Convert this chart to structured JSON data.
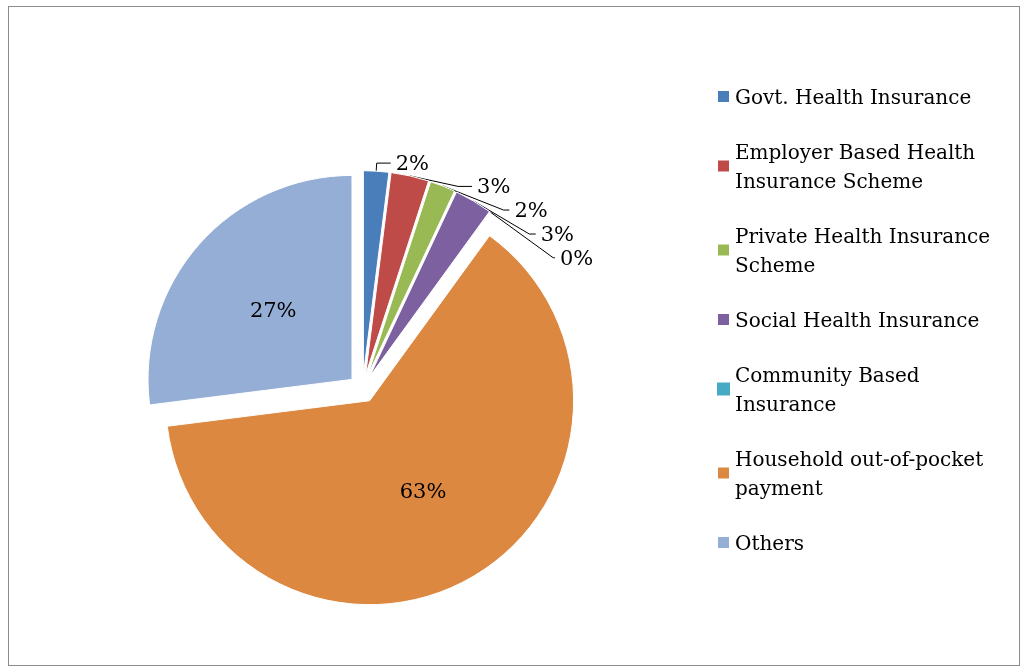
{
  "chart_data": {
    "type": "pie",
    "categories": [
      "Govt. Health Insurance",
      "Employer Based Health Insurance Scheme",
      "Private Health Insurance Scheme",
      "Social Health Insurance",
      "Community Based Insurance",
      "Household out-of-pocket payment",
      "Others"
    ],
    "values": [
      2,
      3,
      2,
      3,
      0,
      63,
      27
    ],
    "value_labels": [
      "2%",
      "3%",
      "2%",
      "3%",
      "0%",
      "63%",
      "27%"
    ],
    "colors": [
      "#4a7ebb",
      "#be4b48",
      "#98b954",
      "#7d60a0",
      "#46aac5",
      "#dd8840",
      "#95aed5"
    ],
    "legend": "right"
  }
}
